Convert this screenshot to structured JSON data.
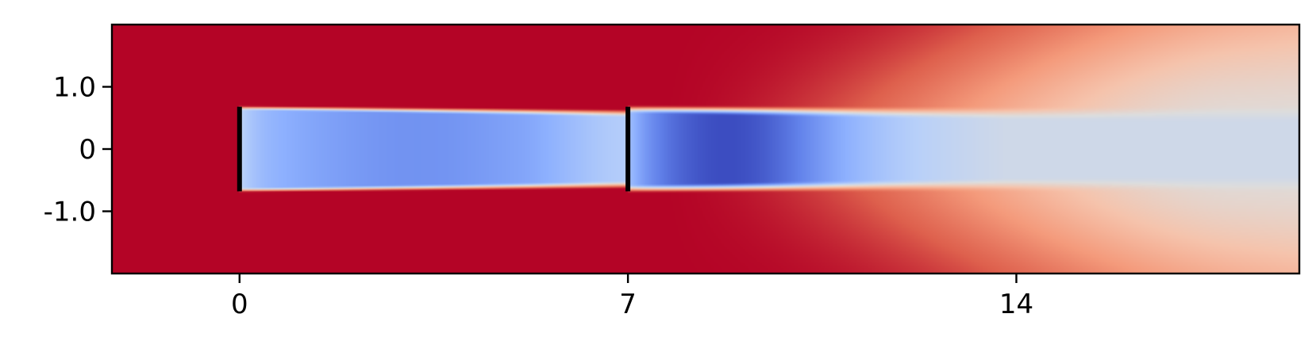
{
  "chart_data": {
    "type": "heatmap",
    "title": "",
    "xlabel": "",
    "ylabel": "",
    "colormap": "coolwarm",
    "xlim": [
      -2.3,
      19.1
    ],
    "ylim": [
      -2.0,
      2.0
    ],
    "x_ticks": [
      {
        "value": 0,
        "label": "0"
      },
      {
        "value": 7,
        "label": "7"
      },
      {
        "value": 14,
        "label": "14"
      }
    ],
    "y_ticks": [
      {
        "value": 1.0,
        "label": "1.0"
      },
      {
        "value": 0,
        "label": "0"
      },
      {
        "value": -1.0,
        "label": "-1.0"
      }
    ],
    "markers": [
      {
        "x": 0,
        "y_from": -0.68,
        "y_to": 0.68
      },
      {
        "x": 7,
        "y_from": -0.68,
        "y_to": 0.68
      }
    ],
    "field": {
      "description_levels": "wake velocity field; red = high (freestream), blue = low (wake deficit)",
      "background_level": 1.0,
      "wakes": [
        {
          "x_start": 0,
          "half_width": 0.68,
          "min_level": 0.15
        },
        {
          "x_start": 7,
          "half_width": 0.68,
          "min_level": 0.02
        }
      ],
      "far_field_level": 0.5
    },
    "grid": false,
    "legend": "none"
  }
}
